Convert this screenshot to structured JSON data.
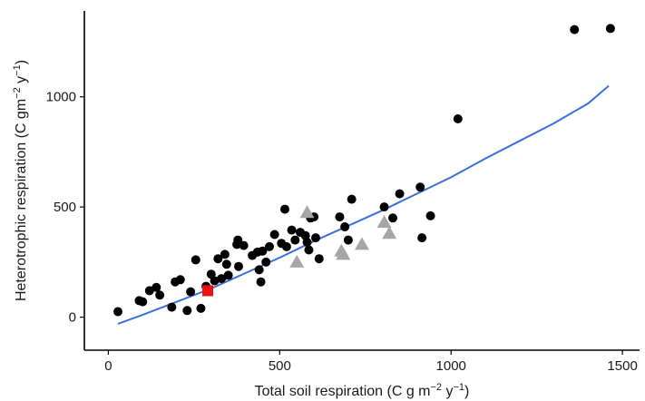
{
  "chart_data": {
    "type": "scatter",
    "title": "",
    "xlabel": {
      "main": "Total soil respiration (C g m",
      "sup1": "−2",
      "mid": " y",
      "sup2": "−1",
      "end": ")"
    },
    "ylabel": {
      "main": "Heterotrophic respiration (C gm",
      "sup1": "−2",
      "mid": " y",
      "sup2": "−1",
      "end": ")"
    },
    "xlim": [
      -70,
      1550
    ],
    "ylim": [
      -150,
      1390
    ],
    "xticks": [
      0,
      500,
      1000,
      1500
    ],
    "yticks": [
      0,
      500,
      1000
    ],
    "xtick_labels": [
      "0",
      "500",
      "1000",
      "1500"
    ],
    "ytick_labels": [
      "0",
      "500",
      "1000"
    ],
    "grid": false,
    "series": [
      {
        "marker": "circle",
        "color": "#000000",
        "points": [
          [
            28,
            25
          ],
          [
            90,
            75
          ],
          [
            100,
            70
          ],
          [
            120,
            120
          ],
          [
            140,
            135
          ],
          [
            150,
            100
          ],
          [
            185,
            45
          ],
          [
            195,
            160
          ],
          [
            210,
            170
          ],
          [
            230,
            30
          ],
          [
            240,
            115
          ],
          [
            255,
            260
          ],
          [
            270,
            40
          ],
          [
            285,
            140
          ],
          [
            300,
            195
          ],
          [
            310,
            165
          ],
          [
            320,
            265
          ],
          [
            330,
            175
          ],
          [
            340,
            285
          ],
          [
            345,
            240
          ],
          [
            350,
            190
          ],
          [
            375,
            330
          ],
          [
            378,
            350
          ],
          [
            380,
            230
          ],
          [
            395,
            325
          ],
          [
            420,
            280
          ],
          [
            435,
            295
          ],
          [
            440,
            215
          ],
          [
            445,
            160
          ],
          [
            450,
            300
          ],
          [
            460,
            250
          ],
          [
            470,
            320
          ],
          [
            485,
            375
          ],
          [
            505,
            335
          ],
          [
            515,
            490
          ],
          [
            520,
            320
          ],
          [
            535,
            395
          ],
          [
            545,
            350
          ],
          [
            560,
            385
          ],
          [
            575,
            370
          ],
          [
            580,
            340
          ],
          [
            585,
            305
          ],
          [
            590,
            450
          ],
          [
            600,
            455
          ],
          [
            605,
            360
          ],
          [
            615,
            265
          ],
          [
            675,
            455
          ],
          [
            690,
            410
          ],
          [
            700,
            350
          ],
          [
            710,
            535
          ],
          [
            805,
            500
          ],
          [
            830,
            450
          ],
          [
            850,
            560
          ],
          [
            910,
            590
          ],
          [
            915,
            360
          ],
          [
            940,
            460
          ],
          [
            1020,
            900
          ],
          [
            1360,
            1305
          ],
          [
            1465,
            1310
          ]
        ]
      },
      {
        "marker": "triangle",
        "color": "#a6a6a6",
        "points": [
          [
            550,
            250
          ],
          [
            580,
            475
          ],
          [
            680,
            300
          ],
          [
            685,
            285
          ],
          [
            740,
            330
          ],
          [
            805,
            430
          ],
          [
            820,
            380
          ]
        ]
      },
      {
        "marker": "square",
        "color": "#ee1111",
        "points": [
          [
            290,
            120
          ]
        ]
      }
    ],
    "trend_line": {
      "color": "#3a6fde",
      "x": [
        28,
        100,
        200,
        300,
        400,
        500,
        600,
        700,
        800,
        900,
        1000,
        1100,
        1200,
        1300,
        1400,
        1460
      ],
      "y": [
        -30,
        10,
        70,
        130,
        200,
        270,
        345,
        415,
        485,
        560,
        635,
        720,
        800,
        880,
        970,
        1050
      ]
    }
  }
}
